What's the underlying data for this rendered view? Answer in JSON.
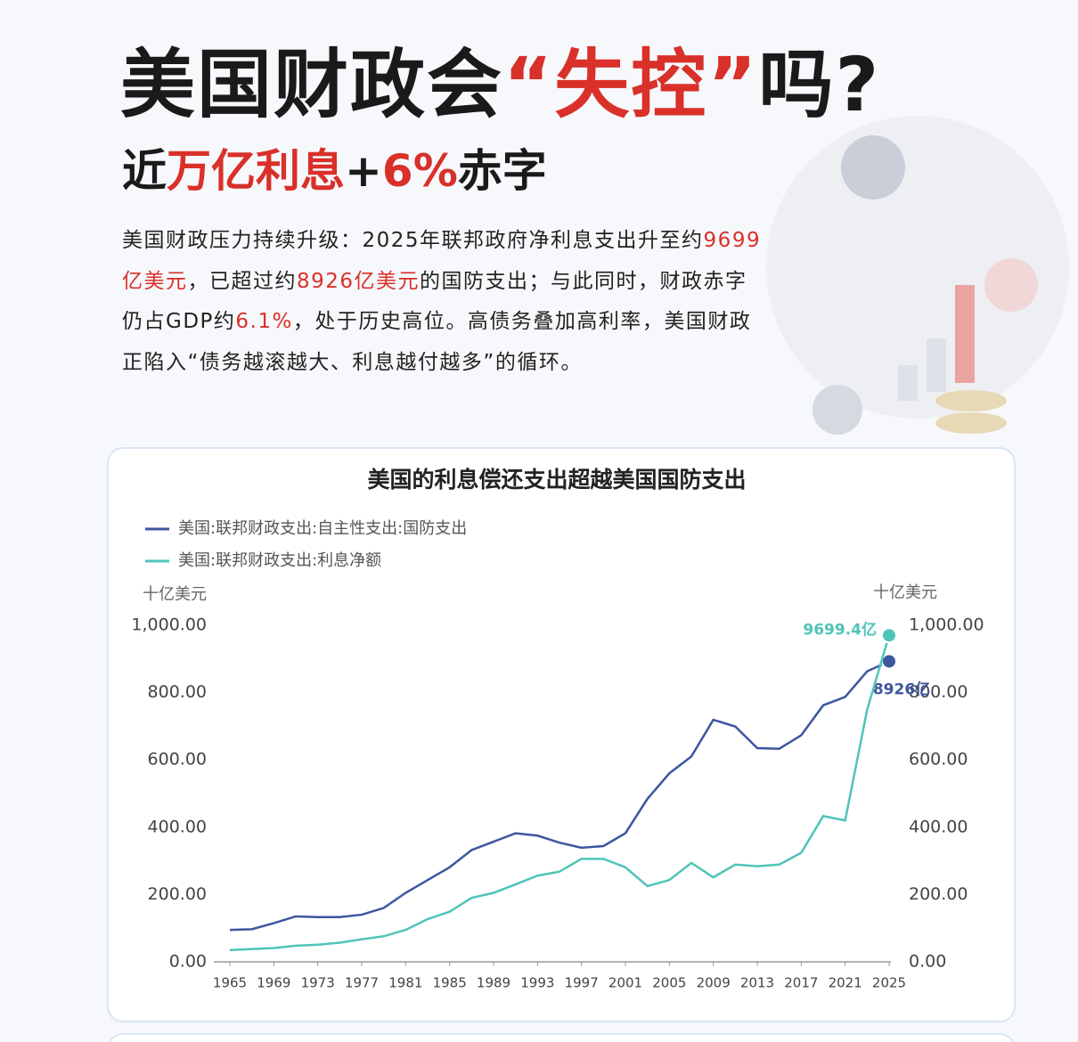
{
  "header": {
    "title": [
      {
        "text": "美国财政会",
        "color": "#1a1a1a"
      },
      {
        "text": "“失控”",
        "color": "#d9302a"
      },
      {
        "text": "吗?",
        "color": "#1a1a1a"
      }
    ],
    "subtitle": [
      {
        "text": "近",
        "color": "#1a1a1a"
      },
      {
        "text": "万亿利息",
        "color": "#d9302a"
      },
      {
        "text": "+",
        "color": "#1a1a1a"
      },
      {
        "text": "6%",
        "color": "#d9302a"
      },
      {
        "text": "赤字",
        "color": "#1a1a1a"
      }
    ],
    "paragraph": [
      {
        "text": "美国财政压力持续升级：2025年联邦政府净利息支出升至约",
        "color": "#222222"
      },
      {
        "text": "9699亿美元",
        "color": "#d9302a"
      },
      {
        "text": "，已超过约",
        "color": "#222222"
      },
      {
        "text": "8926亿美元",
        "color": "#d9302a"
      },
      {
        "text": "的国防支出；与此同时，财政赤字仍占GDP约",
        "color": "#222222"
      },
      {
        "text": "6.1%",
        "color": "#d9302a"
      },
      {
        "text": "，处于历史高位。高债务叠加高利率，美国财政正陷入“债务越滚越大、利息越付越多”的循环。",
        "color": "#222222"
      }
    ]
  },
  "chart_data": {
    "type": "line",
    "title": "美国的利息偿还支出超越美国国防支出",
    "y_label": "十亿美元",
    "y2_label": "十亿美元",
    "x": [
      1965,
      1967,
      1969,
      1971,
      1973,
      1975,
      1977,
      1979,
      1981,
      1983,
      1985,
      1987,
      1989,
      1991,
      1993,
      1995,
      1997,
      1999,
      2001,
      2003,
      2005,
      2007,
      2009,
      2011,
      2013,
      2015,
      2017,
      2019,
      2021,
      2023,
      2025
    ],
    "xlim": [
      1965,
      2025
    ],
    "xticks": [
      1965,
      1969,
      1973,
      1977,
      1981,
      1985,
      1989,
      1993,
      1997,
      2001,
      2005,
      2009,
      2013,
      2017,
      2021,
      2025
    ],
    "ylim": [
      0,
      1000
    ],
    "yticks": [
      {
        "value": 0,
        "label": "0.00"
      },
      {
        "value": 200,
        "label": "200.00"
      },
      {
        "value": 400,
        "label": "400.00"
      },
      {
        "value": 600,
        "label": "600.00"
      },
      {
        "value": 800,
        "label": "800.00"
      },
      {
        "value": 1000,
        "label": "1,000.00"
      }
    ],
    "y2lim": [
      0,
      1000
    ],
    "y2ticks": [
      {
        "value": 0,
        "label": "0.00"
      },
      {
        "value": 200,
        "label": "200.00"
      },
      {
        "value": 400,
        "label": "400.00"
      },
      {
        "value": 600,
        "label": "600.00"
      },
      {
        "value": 800,
        "label": "800.00"
      },
      {
        "value": 1000,
        "label": "1,000.00"
      }
    ],
    "series": [
      {
        "name": "美国:联邦财政支出:自主性支出:国防支出",
        "color": "#3d56a0",
        "end_label": "8926亿",
        "values": [
          95,
          97,
          115,
          135,
          133,
          133,
          140,
          160,
          205,
          243,
          281,
          332,
          357,
          382,
          375,
          354,
          339,
          344,
          382,
          484,
          560,
          610,
          719,
          699,
          635,
          633,
          673,
          762,
          787,
          863,
          892.6
        ]
      },
      {
        "name": "美国:联邦财政支出:利息净额",
        "color": "#4fc4b8",
        "end_label": "9699.4亿",
        "values": [
          35,
          38,
          41,
          48,
          51,
          57,
          67,
          76,
          95,
          127,
          149,
          190,
          205,
          230,
          256,
          268,
          306,
          306,
          281,
          225,
          243,
          294,
          251,
          289,
          284,
          289,
          324,
          433,
          420,
          749,
          969.94
        ]
      }
    ]
  }
}
